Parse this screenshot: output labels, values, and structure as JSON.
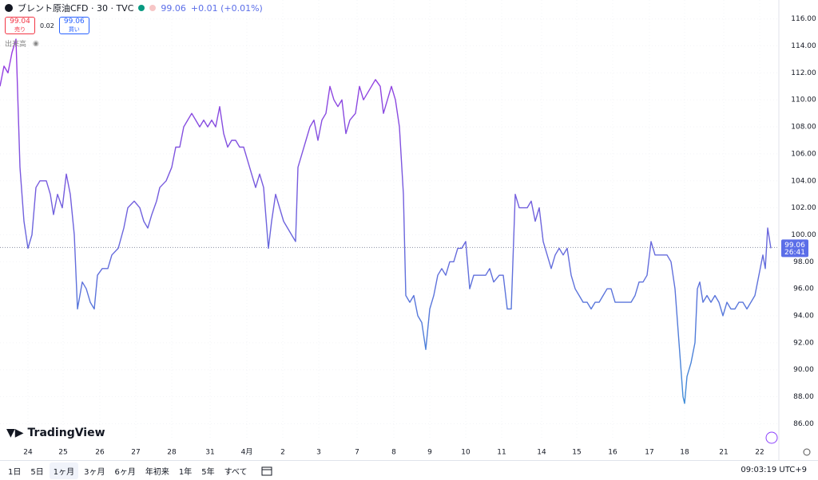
{
  "chart_data": {
    "type": "line",
    "title": "ブレント原油CFD · 30 · TVC",
    "last_value": 99.06,
    "change": "+0.01 (+0.01%)",
    "countdown": "26:41",
    "colors": [
      "#9a3be2",
      "#3f8ed8"
    ],
    "last_color": "#5b6ee8",
    "grid": true,
    "x": [
      0,
      5,
      10,
      15,
      20,
      25,
      30,
      35,
      40,
      45,
      50,
      58,
      63,
      67,
      72,
      78,
      83,
      88,
      93,
      97,
      103,
      108,
      113,
      118,
      122,
      128,
      135,
      140,
      148,
      155,
      160,
      168,
      175,
      180,
      185,
      190,
      196,
      200,
      208,
      215,
      220,
      225,
      230,
      235,
      240,
      245,
      250,
      255,
      260,
      265,
      270,
      275,
      280,
      285,
      290,
      295,
      300,
      305,
      310,
      315,
      320,
      325,
      330,
      336,
      340,
      345,
      350,
      355,
      360,
      365,
      370,
      373,
      378,
      383,
      388,
      393,
      398,
      403,
      408,
      413,
      418,
      423,
      428,
      433,
      438,
      445,
      450,
      455,
      460,
      465,
      470,
      476,
      480,
      485,
      490,
      495,
      500,
      505,
      508,
      513,
      518,
      523,
      528,
      533,
      538,
      543,
      548,
      553,
      558,
      563,
      568,
      573,
      578,
      583,
      588,
      593,
      600,
      608,
      613,
      618,
      625,
      630,
      635,
      640,
      645,
      650,
      655,
      660,
      665,
      670,
      675,
      680,
      685,
      690,
      695,
      700,
      705,
      710,
      715,
      720,
      725,
      730,
      735,
      740,
      745,
      750,
      755,
      760,
      765,
      770,
      775,
      780,
      785,
      790,
      795,
      800,
      805,
      810,
      815,
      820,
      825,
      830,
      835,
      840,
      845,
      850,
      855,
      857,
      860,
      865,
      870,
      873,
      876,
      880,
      885,
      890,
      895,
      900,
      905,
      910,
      915,
      920,
      925,
      930,
      935,
      940,
      945,
      950,
      955,
      958,
      961,
      965
    ],
    "values": [
      111,
      112.5,
      112,
      113.5,
      114.5,
      105,
      101,
      99,
      100,
      103.5,
      104,
      104,
      103,
      101.5,
      103,
      102,
      104.5,
      103,
      100,
      94.5,
      96.5,
      96,
      95,
      94.5,
      97,
      97.5,
      97.5,
      98.5,
      99,
      100.5,
      102,
      102.5,
      102,
      101,
      100.5,
      101.5,
      102.5,
      103.5,
      104,
      105,
      106.5,
      106.5,
      108,
      108.5,
      109,
      108.5,
      108,
      108.5,
      108,
      108.5,
      108,
      109.5,
      107.5,
      106.5,
      107,
      107,
      106.5,
      106.5,
      105.5,
      104.5,
      103.5,
      104.5,
      103.5,
      99,
      101,
      103,
      102,
      101,
      100.5,
      100,
      99.5,
      105,
      106,
      107,
      108,
      108.5,
      107,
      108.5,
      109,
      111,
      110,
      109.5,
      110,
      107.5,
      108.5,
      109,
      111,
      110,
      110.5,
      111,
      111.5,
      111,
      109,
      110,
      111,
      110,
      108,
      103,
      95.5,
      95,
      95.5,
      94,
      93.5,
      91.5,
      94.5,
      95.5,
      97,
      97.5,
      97,
      98,
      98,
      99,
      99,
      99.5,
      96,
      97,
      97,
      97,
      97.5,
      96.5,
      97,
      97,
      94.5,
      94.5,
      103,
      102,
      102,
      102,
      102.5,
      101,
      102,
      99.5,
      98.5,
      97.5,
      98.5,
      99,
      98.5,
      99,
      97,
      96,
      95.5,
      95,
      95,
      94.5,
      95,
      95,
      95.5,
      96,
      96,
      95,
      95,
      95,
      95,
      95,
      95.5,
      96.5,
      96.5,
      97,
      99.5,
      98.5,
      98.5,
      98.5,
      98.5,
      98,
      96,
      92,
      88,
      87.5,
      89.5,
      90.5,
      92,
      96,
      96.5,
      95,
      95.5,
      95,
      95.5,
      95,
      94,
      95,
      94.5,
      94.5,
      95,
      95,
      94.5,
      95,
      95.5,
      97,
      98.5,
      97.5,
      100.5,
      99
    ],
    "xlim": [
      0,
      975
    ],
    "xticks": [
      {
        "value": 35,
        "label": "24"
      },
      {
        "value": 79,
        "label": "25"
      },
      {
        "value": 125,
        "label": "26"
      },
      {
        "value": 170,
        "label": "27"
      },
      {
        "value": 215,
        "label": "28"
      },
      {
        "value": 263,
        "label": "31"
      },
      {
        "value": 309,
        "label": "4月"
      },
      {
        "value": 354,
        "label": "2"
      },
      {
        "value": 399,
        "label": "3"
      },
      {
        "value": 447,
        "label": "7"
      },
      {
        "value": 493,
        "label": "8"
      },
      {
        "value": 538,
        "label": "9"
      },
      {
        "value": 583,
        "label": "10"
      },
      {
        "value": 628,
        "label": "11"
      },
      {
        "value": 678,
        "label": "14"
      },
      {
        "value": 722,
        "label": "15"
      },
      {
        "value": 767,
        "label": "16"
      },
      {
        "value": 813,
        "label": "17"
      },
      {
        "value": 857,
        "label": "18"
      },
      {
        "value": 906,
        "label": "21"
      },
      {
        "value": 951,
        "label": "22"
      }
    ],
    "ylim": [
      84.9,
      117.4
    ],
    "yticks": [
      {
        "value": 86,
        "label": "86.00"
      },
      {
        "value": 88,
        "label": "88.00"
      },
      {
        "value": 90,
        "label": "90.00"
      },
      {
        "value": 92,
        "label": "92.00"
      },
      {
        "value": 94,
        "label": "94.00"
      },
      {
        "value": 96,
        "label": "96.00"
      },
      {
        "value": 98,
        "label": "98.00"
      },
      {
        "value": 100,
        "label": "100.00"
      },
      {
        "value": 102,
        "label": "102.00"
      },
      {
        "value": 104,
        "label": "104.00"
      },
      {
        "value": 106,
        "label": "106.00"
      },
      {
        "value": 108,
        "label": "108.00"
      },
      {
        "value": 110,
        "label": "110.00"
      },
      {
        "value": 112,
        "label": "112.00"
      },
      {
        "value": 114,
        "label": "114.00"
      },
      {
        "value": 116,
        "label": "116.00"
      }
    ]
  },
  "ui": {
    "last_price": "99.06",
    "sell": {
      "price": "99.04",
      "label": "売り"
    },
    "spread": "0.02",
    "buy": {
      "price": "99.06",
      "label": "買い"
    },
    "volume": "出来高",
    "brand": "TradingView",
    "ranges": [
      "1日",
      "5日",
      "1ヶ月",
      "3ヶ月",
      "6ヶ月",
      "年初来",
      "1年",
      "5年",
      "すべて"
    ],
    "clock": "09:03:19 UTC+9"
  }
}
